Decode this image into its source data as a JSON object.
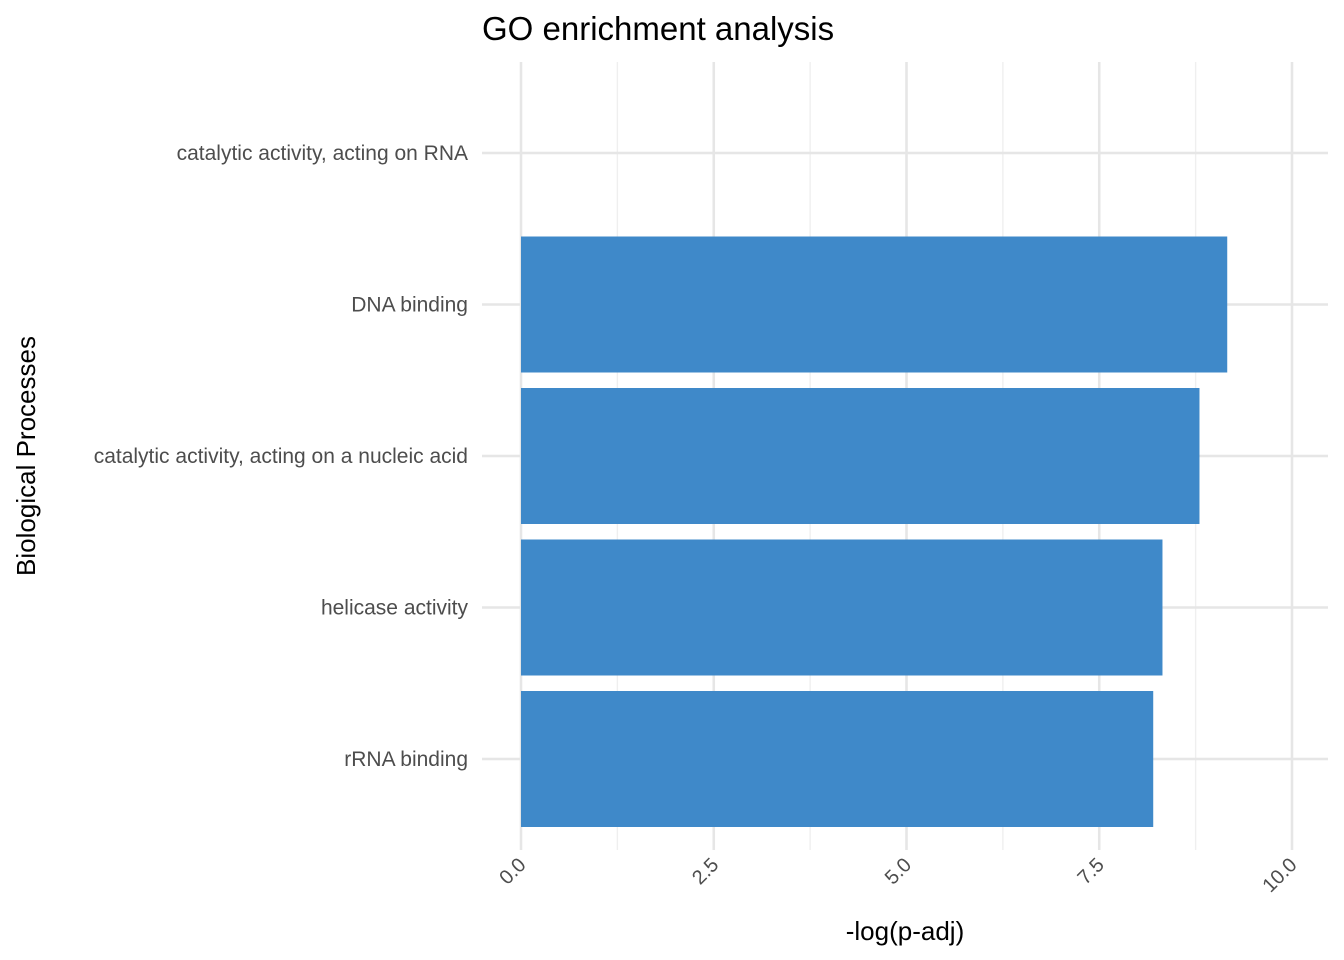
{
  "chart_data": {
    "type": "bar",
    "orientation": "horizontal",
    "title": "GO enrichment analysis",
    "xlabel": "-log(p-adj)",
    "ylabel": "Biological Processes",
    "categories": [
      "catalytic activity, acting on RNA",
      "DNA binding",
      "catalytic activity, acting on a nucleic acid",
      "helicase activity",
      "rRNA binding"
    ],
    "values": [
      0,
      9.16,
      8.8,
      8.32,
      8.2
    ],
    "xlim": [
      0,
      10.4
    ],
    "xticks": [
      "0.0",
      "2.5",
      "5.0",
      "7.5",
      "10.0"
    ],
    "xtick_values": [
      0,
      2.5,
      5,
      7.5,
      10
    ],
    "grid": true,
    "bar_color": "#3f89c9",
    "background": "#ffffff"
  }
}
